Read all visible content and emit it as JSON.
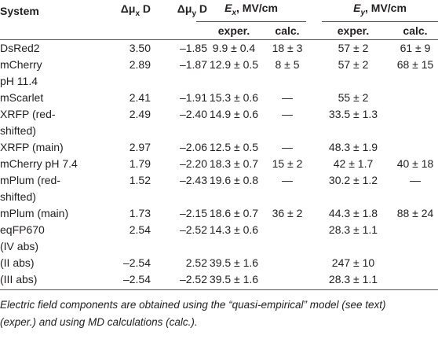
{
  "table": {
    "header": {
      "system": "System",
      "dmx": {
        "symbol": "Δμ",
        "sub": "x",
        "unit": " D"
      },
      "dmy": {
        "symbol": "Δμ",
        "sub": "y",
        "unit": " D"
      },
      "ex": {
        "symbol": "E",
        "sub": "x",
        "unit": ", MV/cm"
      },
      "ey": {
        "symbol": "E",
        "sub": "y",
        "unit": ", MV/cm"
      },
      "sub": [
        "exper.",
        "calc.",
        "exper.",
        "calc."
      ]
    },
    "rows": [
      {
        "system": [
          "DsRed2"
        ],
        "cells": [
          "3.50",
          "–1.85",
          "9.9 ± 0.4",
          "18 ± 3",
          "57 ± 2",
          "61 ± 9"
        ]
      },
      {
        "system": [
          "mCherry",
          "pH 11.4"
        ],
        "cells": [
          "2.89",
          "–1.87",
          "12.9 ± 0.5",
          "8 ± 5",
          "57 ± 2",
          "68 ± 15"
        ]
      },
      {
        "system": [
          "mScarlet"
        ],
        "cells": [
          "2.41",
          "–1.91",
          "15.3 ± 0.6",
          "—",
          "55 ± 2",
          null
        ]
      },
      {
        "system": [
          "XRFP (red-",
          "shifted)"
        ],
        "cells": [
          "2.49",
          "–2.40",
          "14.9 ± 0.6",
          "—",
          "33.5 ± 1.3",
          null
        ]
      },
      {
        "system": [
          "XRFP (main)"
        ],
        "cells": [
          "2.97",
          "–2.06",
          "12.5 ± 0.5",
          "—",
          "48.3 ± 1.9",
          null
        ]
      },
      {
        "system": [
          "mCherry pH 7.4"
        ],
        "cells": [
          "1.79",
          "–2.20",
          "18.3 ± 0.7",
          "15 ± 2",
          "42 ± 1.7",
          "40 ± 18"
        ]
      },
      {
        "system": [
          "mPlum (red-",
          "shifted)"
        ],
        "cells": [
          "1.52",
          "–2.43",
          "19.6 ± 0.8",
          "—",
          "30.2 ± 1.2",
          "—"
        ]
      },
      {
        "system": [
          "mPlum (main)"
        ],
        "cells": [
          "1.73",
          "–2.15",
          "18.6 ± 0.7",
          "36 ± 2",
          "44.3 ± 1.8",
          "88 ± 24"
        ]
      },
      {
        "system": [
          "eqFP670",
          "(IV abs)"
        ],
        "cells": [
          "2.54",
          "–2.52",
          "14.3 ± 0.6",
          null,
          "28.3 ± 1.1",
          null
        ]
      },
      {
        "system": [
          "(II abs)"
        ],
        "cells": [
          "–2.54",
          "2.52",
          "39.5 ± 1.6",
          null,
          "247 ± 10",
          null
        ]
      },
      {
        "system": [
          "(III abs)"
        ],
        "cells": [
          "–2.54",
          "–2.52",
          "39.5 ± 1.6",
          null,
          "28.3 ± 1.1",
          null
        ]
      }
    ],
    "footnote": [
      "Electric field components are obtained using the “quasi-empirical” model (see text)",
      "(exper.) and using MD calculations (calc.)."
    ]
  }
}
